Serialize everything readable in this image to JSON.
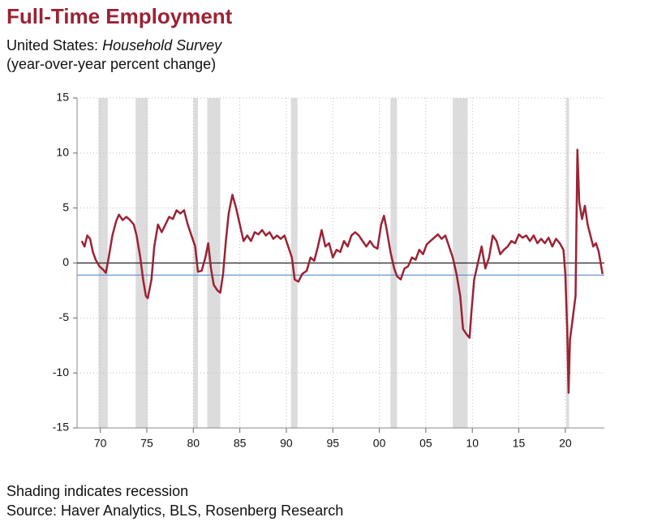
{
  "chart_data": {
    "type": "line",
    "title": "Full-Time Employment",
    "subtitle": "United States:",
    "subtitle_italic": "Household Survey",
    "y_label": "(year-over-year percent change)",
    "annotations": [
      "Shading indicates recession",
      "Source: Haver Analytics, BLS, Rosenberg Research"
    ],
    "xlim": [
      1967.5,
      2024.2
    ],
    "xticks": [
      {
        "value": 1970,
        "label": "70"
      },
      {
        "value": 1975,
        "label": "75"
      },
      {
        "value": 1980,
        "label": "80"
      },
      {
        "value": 1985,
        "label": "85"
      },
      {
        "value": 1990,
        "label": "90"
      },
      {
        "value": 1995,
        "label": "95"
      },
      {
        "value": 2000,
        "label": "00"
      },
      {
        "value": 2005,
        "label": "05"
      },
      {
        "value": 2010,
        "label": "10"
      },
      {
        "value": 2015,
        "label": "15"
      },
      {
        "value": 2020,
        "label": "20"
      }
    ],
    "ylim": [
      -15,
      15
    ],
    "yticks": [
      15,
      10,
      5,
      0,
      -5,
      -10,
      -15
    ],
    "grid": true,
    "recession_color": "#dcdcdc",
    "recessions": [
      [
        1969.8,
        1970.8
      ],
      [
        1973.8,
        1975.1
      ],
      [
        1980.0,
        1980.5
      ],
      [
        1981.5,
        1982.9
      ],
      [
        1990.5,
        1991.2
      ],
      [
        2001.2,
        2001.9
      ],
      [
        2007.9,
        2009.5
      ],
      [
        2020.1,
        2020.4
      ]
    ],
    "reference_lines": [
      {
        "value": 0,
        "color": "#222222"
      },
      {
        "value": -1.1,
        "color": "#5b8fc9"
      }
    ],
    "x": [
      1968.0,
      1968.3,
      1968.6,
      1968.9,
      1969.2,
      1969.5,
      1969.9,
      1970.3,
      1970.6,
      1970.9,
      1971.3,
      1971.7,
      1972.0,
      1972.4,
      1972.8,
      1973.2,
      1973.6,
      1973.9,
      1974.3,
      1974.6,
      1974.9,
      1975.1,
      1975.5,
      1975.8,
      1976.2,
      1976.6,
      1977.0,
      1977.4,
      1977.8,
      1978.2,
      1978.6,
      1979.0,
      1979.4,
      1979.8,
      1980.2,
      1980.5,
      1980.9,
      1981.3,
      1981.6,
      1981.9,
      1982.2,
      1982.6,
      1982.9,
      1983.2,
      1983.5,
      1983.8,
      1984.2,
      1984.6,
      1985.0,
      1985.4,
      1985.8,
      1986.2,
      1986.6,
      1987.0,
      1987.4,
      1987.8,
      1988.2,
      1988.6,
      1989.0,
      1989.4,
      1989.8,
      1990.2,
      1990.6,
      1990.9,
      1991.3,
      1991.7,
      1992.2,
      1992.6,
      1993.0,
      1993.4,
      1993.8,
      1994.2,
      1994.6,
      1995.0,
      1995.4,
      1995.8,
      1996.2,
      1996.6,
      1997.0,
      1997.4,
      1997.8,
      1998.2,
      1998.6,
      1999.0,
      1999.4,
      1999.8,
      2000.2,
      2000.5,
      2000.8,
      2001.2,
      2001.6,
      2001.9,
      2002.3,
      2002.7,
      2003.1,
      2003.5,
      2003.9,
      2004.3,
      2004.7,
      2005.1,
      2005.5,
      2005.9,
      2006.3,
      2006.7,
      2007.1,
      2007.5,
      2007.9,
      2008.3,
      2008.7,
      2009.0,
      2009.4,
      2009.7,
      2009.9,
      2010.2,
      2010.6,
      2011.0,
      2011.4,
      2011.8,
      2012.2,
      2012.6,
      2013.0,
      2013.4,
      2013.8,
      2014.2,
      2014.6,
      2015.0,
      2015.4,
      2015.8,
      2016.2,
      2016.6,
      2017.0,
      2017.4,
      2017.8,
      2018.2,
      2018.6,
      2019.0,
      2019.4,
      2019.8,
      2020.0,
      2020.2,
      2020.35,
      2020.5,
      2020.8,
      2021.1,
      2021.3,
      2021.5,
      2021.8,
      2022.1,
      2022.4,
      2022.7,
      2023.0,
      2023.3,
      2023.6,
      2023.9,
      2024.0
    ],
    "series": [
      {
        "color": "#9b2335",
        "values": [
          2.0,
          1.5,
          2.5,
          2.2,
          1.0,
          0.3,
          -0.3,
          -0.6,
          -0.9,
          0.5,
          2.5,
          3.8,
          4.4,
          3.9,
          4.2,
          3.9,
          3.5,
          2.5,
          0.5,
          -1.5,
          -3.0,
          -3.2,
          -1.5,
          1.5,
          3.5,
          2.8,
          3.5,
          4.2,
          4.0,
          4.8,
          4.5,
          4.8,
          3.5,
          2.5,
          1.5,
          -0.8,
          -0.7,
          0.5,
          1.8,
          -0.5,
          -2.0,
          -2.5,
          -2.7,
          -1.0,
          2.0,
          4.5,
          6.2,
          5.0,
          3.5,
          2.0,
          2.5,
          2.0,
          2.8,
          2.6,
          3.0,
          2.5,
          2.8,
          2.2,
          2.5,
          2.2,
          2.5,
          1.5,
          0.5,
          -1.5,
          -1.7,
          -1.0,
          -0.7,
          0.5,
          0.2,
          1.5,
          3.0,
          1.5,
          1.8,
          0.5,
          1.2,
          1.0,
          2.0,
          1.5,
          2.5,
          2.8,
          2.5,
          2.0,
          1.5,
          2.0,
          1.5,
          1.3,
          3.5,
          4.3,
          3.0,
          1.0,
          -0.5,
          -1.2,
          -1.5,
          -0.5,
          -0.3,
          0.5,
          0.3,
          1.2,
          0.8,
          1.7,
          2.0,
          2.3,
          2.6,
          2.2,
          2.5,
          1.5,
          0.5,
          -1.0,
          -3.0,
          -6.0,
          -6.5,
          -6.8,
          -4.5,
          -1.5,
          0.0,
          1.5,
          -0.5,
          0.5,
          2.5,
          2.0,
          0.8,
          1.2,
          1.5,
          2.0,
          1.8,
          2.6,
          2.3,
          2.5,
          2.0,
          2.5,
          1.8,
          2.2,
          1.8,
          2.3,
          1.5,
          2.2,
          1.8,
          1.2,
          -1.0,
          -6.0,
          -11.8,
          -7.0,
          -5.0,
          -3.0,
          10.3,
          5.5,
          4.0,
          5.2,
          3.5,
          2.5,
          1.5,
          1.8,
          1.0,
          -0.5,
          -1.0
        ]
      }
    ]
  }
}
